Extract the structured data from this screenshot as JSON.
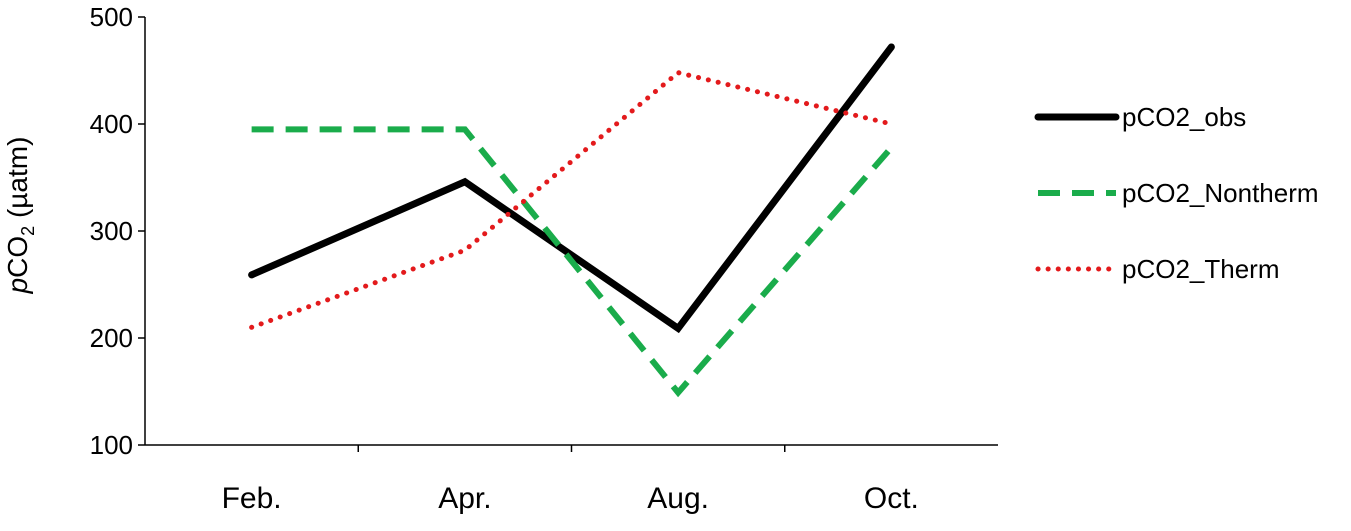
{
  "chart_data": {
    "type": "line",
    "categories": [
      "Feb.",
      "Apr.",
      "Aug.",
      "Oct."
    ],
    "ylabel": {
      "italic": "p",
      "main": "CO",
      "sub": "2",
      "unit": " (µatm)"
    },
    "ylim": [
      100,
      500
    ],
    "yticks": [
      100,
      200,
      300,
      400,
      500
    ],
    "grid": false,
    "legend_position": "right",
    "series": [
      {
        "name": "pCO2_obs",
        "values": [
          259,
          346,
          209,
          472
        ],
        "color": "#000000",
        "style": "solid"
      },
      {
        "name": "pCO2_Nontherm",
        "values": [
          395,
          395,
          149,
          378
        ],
        "color": "#1aac4b",
        "style": "dashed"
      },
      {
        "name": "pCO2_Therm",
        "values": [
          210,
          282,
          448,
          400
        ],
        "color": "#e31a1c",
        "style": "dotted"
      }
    ]
  }
}
